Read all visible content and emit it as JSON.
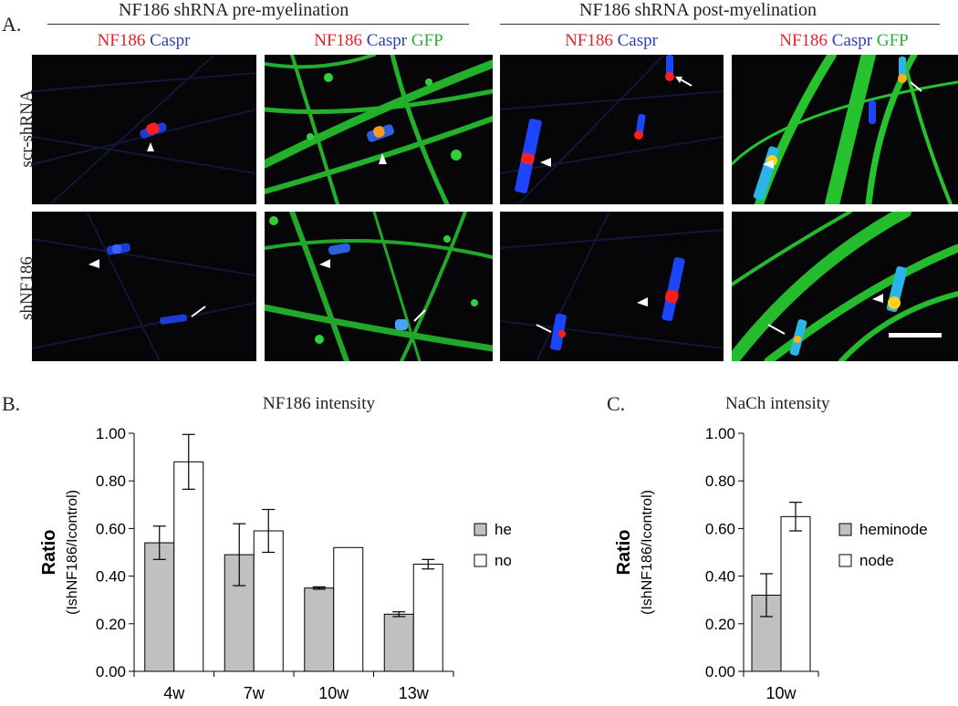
{
  "panel_a": {
    "label": "A.",
    "group_titles": [
      "NF186 shRNA pre-myelination",
      "NF186 shRNA post-myelination"
    ],
    "col_labels": [
      [
        {
          "text": "NF186",
          "color": "#e8202a"
        },
        {
          "text": "Caspr",
          "color": "#2a3fb8"
        }
      ],
      [
        {
          "text": "NF186",
          "color": "#e8202a"
        },
        {
          "text": "Caspr",
          "color": "#2a3fb8"
        },
        {
          "text": "GFP",
          "color": "#2fae36"
        }
      ],
      [
        {
          "text": "NF186",
          "color": "#e8202a"
        },
        {
          "text": "Caspr",
          "color": "#2a3fb8"
        }
      ],
      [
        {
          "text": "NF186",
          "color": "#e8202a"
        },
        {
          "text": "Caspr",
          "color": "#2a3fb8"
        },
        {
          "text": "GFP",
          "color": "#2fae36"
        }
      ]
    ],
    "row_labels": [
      "scr-shRNA",
      "shNF186"
    ]
  },
  "chart_data": [
    {
      "type": "bar",
      "panel_label": "B.",
      "title": "NF186 intensity",
      "categories": [
        "4w",
        "7w",
        "10w",
        "13w"
      ],
      "series": [
        {
          "name": "heminode",
          "values": [
            0.54,
            0.49,
            0.35,
            0.24
          ],
          "errors": [
            0.07,
            0.13,
            0.005,
            0.01
          ],
          "color": "#c0c0c0"
        },
        {
          "name": "node",
          "values": [
            0.88,
            0.59,
            0.52,
            0.45
          ],
          "errors": [
            0.115,
            0.09,
            0.0,
            0.02
          ],
          "color": "#ffffff"
        }
      ],
      "ylabel": "Ratio",
      "ylabel_sub": "(IshNF186/Icontrol)",
      "ylim": [
        0,
        1.0
      ],
      "yticks": [
        "0.00",
        "0.20",
        "0.40",
        "0.60",
        "0.80",
        "1.00"
      ],
      "grid": false,
      "legend": "right"
    },
    {
      "type": "bar",
      "panel_label": "C.",
      "title": "NaCh intensity",
      "categories": [
        "10w"
      ],
      "series": [
        {
          "name": "heminode",
          "values": [
            0.32
          ],
          "errors": [
            0.09
          ],
          "color": "#c0c0c0"
        },
        {
          "name": "node",
          "values": [
            0.65
          ],
          "errors": [
            0.06
          ],
          "color": "#ffffff"
        }
      ],
      "ylabel": "Ratio",
      "ylabel_sub": "(IshNF186/Icontrol)",
      "ylim": [
        0,
        1.0
      ],
      "yticks": [
        "0.00",
        "0.20",
        "0.40",
        "0.60",
        "0.80",
        "1.00"
      ],
      "grid": false,
      "legend": "right"
    }
  ]
}
